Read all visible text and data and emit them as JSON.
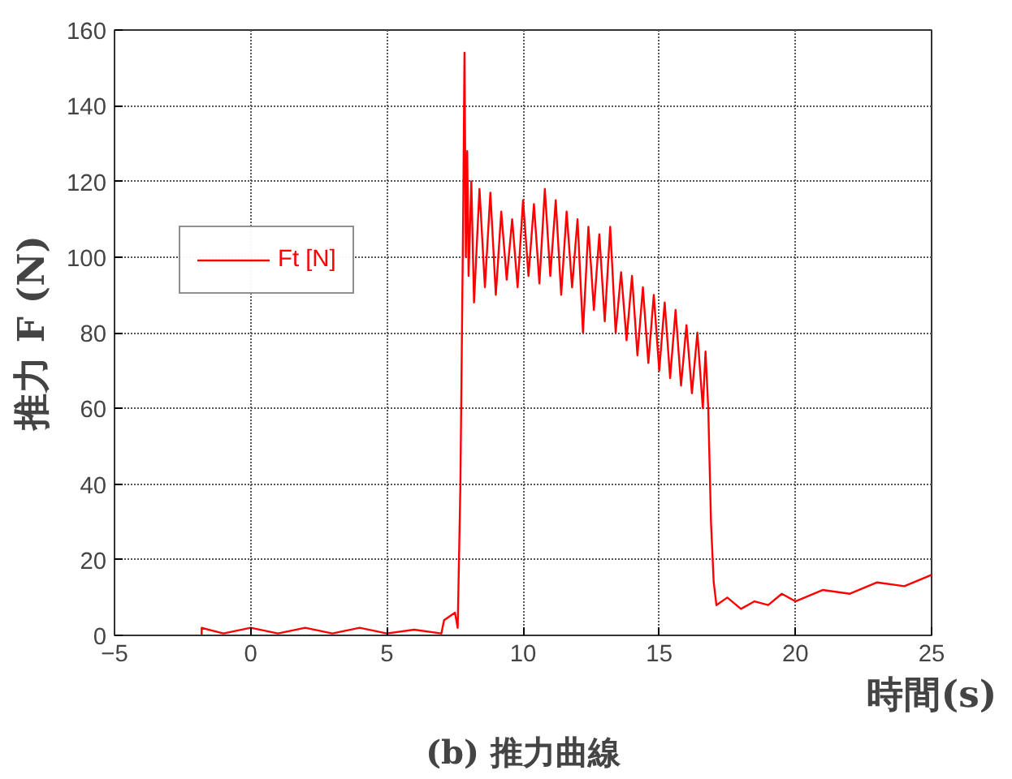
{
  "chart_data": {
    "type": "line",
    "title": "(b) 推力曲線",
    "xlabel": "時間(s)",
    "ylabel": "推力 F (N)",
    "xlim": [
      -5,
      25
    ],
    "xticks": [
      -5,
      0,
      5,
      10,
      15,
      20,
      25
    ],
    "ylim": [
      0,
      160
    ],
    "yticks": [
      0,
      20,
      40,
      60,
      80,
      100,
      120,
      140,
      160
    ],
    "grid": true,
    "legend": "left",
    "line_style": "solid",
    "series": [
      {
        "name": "Ft [N]",
        "color": "#ff0000",
        "x": [
          -1.8,
          -1.8,
          -1,
          0,
          1,
          2,
          3,
          4,
          5,
          6,
          7,
          7.1,
          7.5,
          7.6,
          7.7,
          7.75,
          7.8,
          7.85,
          7.9,
          7.95,
          8.0,
          8.1,
          8.2,
          8.4,
          8.6,
          8.8,
          9.0,
          9.2,
          9.4,
          9.6,
          9.8,
          10.0,
          10.2,
          10.4,
          10.6,
          10.8,
          11.0,
          11.2,
          11.4,
          11.6,
          11.8,
          12.0,
          12.2,
          12.4,
          12.6,
          12.8,
          13.0,
          13.2,
          13.4,
          13.6,
          13.8,
          14.0,
          14.2,
          14.4,
          14.6,
          14.8,
          15.0,
          15.2,
          15.4,
          15.6,
          15.8,
          16.0,
          16.2,
          16.4,
          16.6,
          16.7,
          16.8,
          16.9,
          17.0,
          17.1,
          17.5,
          18,
          18.5,
          19,
          19.5,
          20,
          21,
          22,
          23,
          24,
          25
        ],
        "values": [
          0,
          2,
          0.5,
          2,
          0.5,
          2,
          0.5,
          2,
          0.5,
          1.5,
          0.5,
          4,
          6,
          2,
          40,
          75,
          110,
          154,
          100,
          128,
          95,
          120,
          88,
          118,
          92,
          117,
          90,
          112,
          94,
          110,
          92,
          115,
          95,
          114,
          93,
          118,
          95,
          115,
          90,
          112,
          92,
          110,
          80,
          108,
          86,
          106,
          83,
          108,
          80,
          96,
          78,
          95,
          74,
          92,
          72,
          90,
          70,
          88,
          68,
          86,
          66,
          82,
          64,
          80,
          60,
          75,
          60,
          30,
          14,
          8,
          10,
          7,
          9,
          8,
          11,
          9,
          12,
          11,
          14,
          13,
          16
        ]
      }
    ]
  }
}
